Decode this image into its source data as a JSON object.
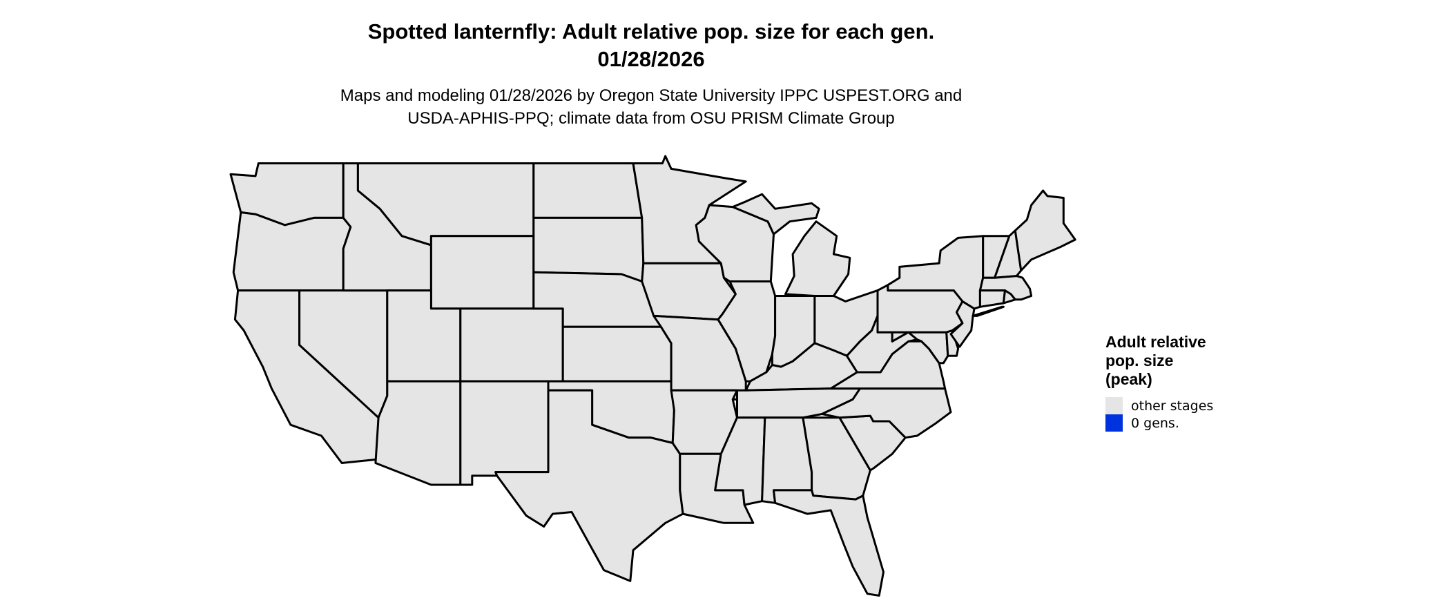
{
  "title": {
    "line1": "Spotted lanternfly: Adult relative pop. size for each gen.",
    "line2": "01/28/2026"
  },
  "subtitle": {
    "line1": "Maps and modeling 01/28/2026 by Oregon State University IPPC USPEST.ORG and",
    "line2": "USDA-APHIS-PPQ; climate data from OSU PRISM Climate Group"
  },
  "map": {
    "state_fill": "#e5e5e5",
    "border_color": "#000000"
  },
  "legend": {
    "title_lines": [
      "Adult relative",
      "pop. size",
      "(peak)"
    ],
    "items": [
      {
        "label": "other stages",
        "color": "#e5e5e5"
      },
      {
        "label": "0 gens.",
        "color": "#0033dd"
      }
    ]
  }
}
